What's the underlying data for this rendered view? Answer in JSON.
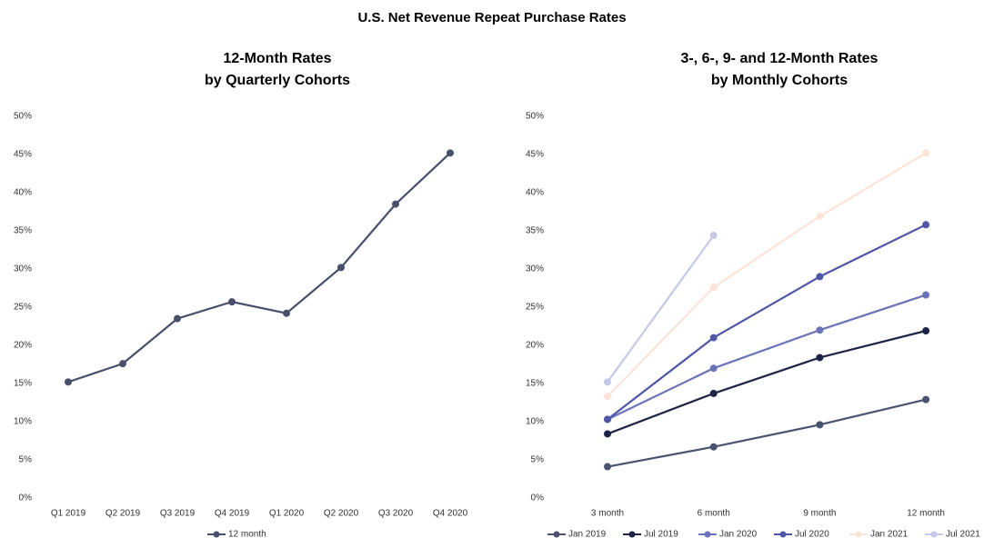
{
  "title": "U.S. Net Revenue Repeat Purchase Rates",
  "chart_data": [
    {
      "type": "line",
      "title": [
        "12-Month Rates",
        "by Quarterly Cohorts"
      ],
      "categories": [
        "Q1 2019",
        "Q2 2019",
        "Q3 2019",
        "Q4 2019",
        "Q1 2020",
        "Q2 2020",
        "Q3 2020",
        "Q4 2020"
      ],
      "series": [
        {
          "name": "12 month",
          "color": "#474f6b",
          "values": [
            15.2,
            17.6,
            23.5,
            25.7,
            24.2,
            30.2,
            38.5,
            45.2
          ]
        }
      ],
      "ylim": [
        0,
        50
      ],
      "yticks": [
        {
          "value": 0,
          "label": "0%"
        },
        {
          "value": 5,
          "label": "5%"
        },
        {
          "value": 10,
          "label": "10%"
        },
        {
          "value": 15,
          "label": "15%"
        },
        {
          "value": 20,
          "label": "20%"
        },
        {
          "value": 25,
          "label": "25%"
        },
        {
          "value": 30,
          "label": "30%"
        },
        {
          "value": 35,
          "label": "35%"
        },
        {
          "value": 40,
          "label": "40%"
        },
        {
          "value": 45,
          "label": "45%"
        },
        {
          "value": 50,
          "label": "50%"
        }
      ],
      "legend": "bottom"
    },
    {
      "type": "line",
      "title": [
        "3-, 6-, 9- and 12-Month Rates",
        "by Monthly Cohorts"
      ],
      "categories": [
        "3 month",
        "6 month",
        "9 month",
        "12 month"
      ],
      "series": [
        {
          "name": "Jan 2019",
          "color": "#4a5270",
          "values": [
            4.1,
            6.7,
            9.6,
            12.9
          ]
        },
        {
          "name": "Jul 2019",
          "color": "#1e2446",
          "values": [
            8.4,
            13.7,
            18.4,
            21.9
          ]
        },
        {
          "name": "Jan 2020",
          "color": "#6b74b8",
          "values": [
            10.3,
            17.0,
            22.0,
            26.6
          ]
        },
        {
          "name": "Jul 2020",
          "color": "#5057a6",
          "values": [
            10.3,
            21.0,
            29.0,
            35.8
          ]
        },
        {
          "name": "Jan 2021",
          "color": "#fbe3d8",
          "values": [
            13.3,
            27.6,
            36.9,
            45.2
          ]
        },
        {
          "name": "Jul 2021",
          "color": "#c5c9e6",
          "values": [
            15.2,
            34.4,
            null,
            null
          ]
        }
      ],
      "ylim": [
        0,
        50
      ],
      "yticks": [
        {
          "value": 0,
          "label": "0%"
        },
        {
          "value": 5,
          "label": "5%"
        },
        {
          "value": 10,
          "label": "10%"
        },
        {
          "value": 15,
          "label": "15%"
        },
        {
          "value": 20,
          "label": "20%"
        },
        {
          "value": 25,
          "label": "25%"
        },
        {
          "value": 30,
          "label": "30%"
        },
        {
          "value": 35,
          "label": "35%"
        },
        {
          "value": 40,
          "label": "40%"
        },
        {
          "value": 45,
          "label": "45%"
        },
        {
          "value": 50,
          "label": "50%"
        }
      ],
      "legend": "bottom"
    }
  ]
}
